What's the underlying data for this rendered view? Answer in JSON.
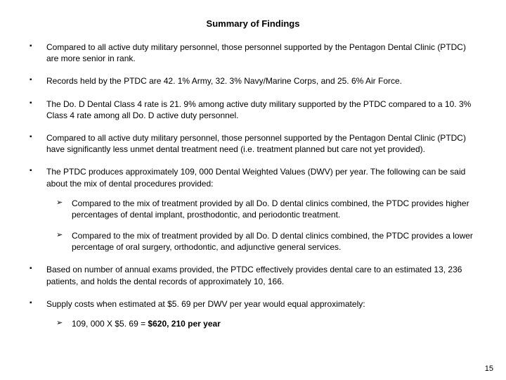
{
  "title": "Summary of Findings",
  "bullets": {
    "b1": "Compared to all active duty military personnel, those personnel supported by the Pentagon Dental Clinic (PTDC) are more senior in rank.",
    "b2": "Records held by the PTDC are 42. 1% Army, 32. 3% Navy/Marine Corps, and 25. 6% Air Force.",
    "b3": "The Do. D Dental Class 4 rate is 21. 9% among active duty military supported by the PTDC compared to a 10. 3% Class 4 rate among all Do. D active duty personnel.",
    "b4": "Compared to all active duty military personnel, those personnel supported by the Pentagon Dental Clinic (PTDC) have significantly less unmet dental treatment need (i.e. treatment planned but care not yet provided).",
    "b5": "The PTDC produces approximately 109, 000 Dental Weighted Values (DWV) per year.  The following can be said about the mix of dental procedures provided:",
    "b5_sub1": "Compared to the mix of treatment provided by all Do. D dental clinics combined, the PTDC provides higher percentages of dental implant, prosthodontic, and periodontic treatment.",
    "b5_sub2": "Compared to the mix of treatment provided by all Do. D dental clinics combined, the PTDC provides a lower percentage of oral surgery, orthodontic, and adjunctive general services.",
    "b6": "Based on number of annual exams provided, the PTDC effectively provides dental care to an estimated 13, 236 patients, and holds the dental records of approximately 10, 166.",
    "b7": "Supply costs when estimated at $5. 69 per DWV per year would equal approximately:",
    "b7_sub1_prefix": "109, 000 X $5. 69 = ",
    "b7_sub1_bold": "$620, 210 per year"
  },
  "page_number": "15"
}
